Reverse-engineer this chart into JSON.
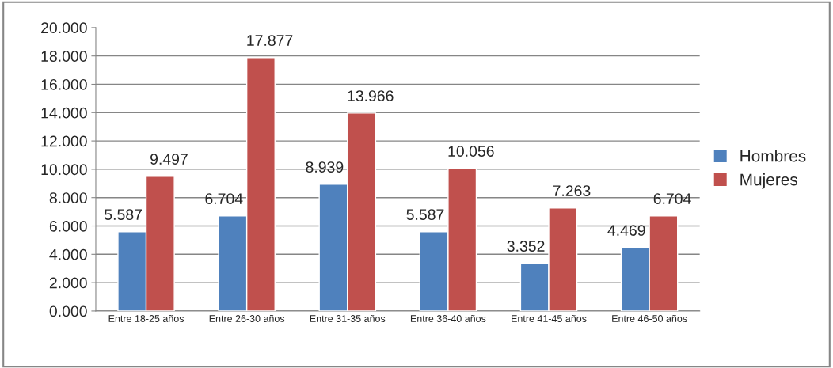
{
  "chart_data": {
    "type": "bar",
    "categories": [
      "Entre 18-25 años",
      "Entre 26-30 años",
      "Entre 31-35 años",
      "Entre 36-40 años",
      "Entre 41-45 años",
      "Entre 46-50 años"
    ],
    "series": [
      {
        "name": "Hombres",
        "color": "#4f81bd",
        "values": [
          5.587,
          6.704,
          8.939,
          5.587,
          3.352,
          4.469
        ],
        "value_labels": [
          "5.587",
          "6.704",
          "8.939",
          "5.587",
          "3.352",
          "4.469"
        ]
      },
      {
        "name": "Mujeres",
        "color": "#c0504d",
        "values": [
          9.497,
          17.877,
          13.966,
          10.056,
          7.263,
          6.704
        ],
        "value_labels": [
          "9.497",
          "17.877",
          "13.966",
          "10.056",
          "7.263",
          "6.704"
        ]
      }
    ],
    "ylim": [
      0,
      20
    ],
    "yticks": [
      {
        "value": 0,
        "label": "0.000"
      },
      {
        "value": 2,
        "label": "2.000"
      },
      {
        "value": 4,
        "label": "4.000"
      },
      {
        "value": 6,
        "label": "6.000"
      },
      {
        "value": 8,
        "label": "8.000"
      },
      {
        "value": 10,
        "label": "10.000"
      },
      {
        "value": 12,
        "label": "12.000"
      },
      {
        "value": 14,
        "label": "14.000"
      },
      {
        "value": 16,
        "label": "16.000"
      },
      {
        "value": 18,
        "label": "18.000"
      },
      {
        "value": 20,
        "label": "20.000"
      }
    ],
    "grid": "y",
    "legend": "right"
  }
}
